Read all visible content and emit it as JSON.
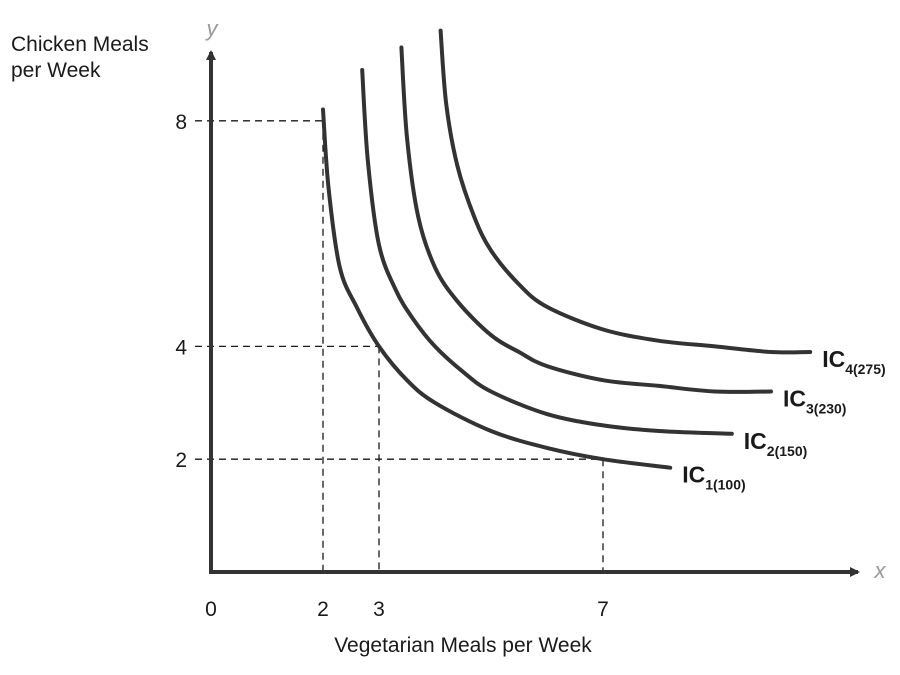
{
  "chart_data": {
    "type": "line",
    "title": "",
    "xlabel": "Vegetarian Meals per Week",
    "ylabel": "Chicken Meals per Week",
    "x_axis_letter": "x",
    "y_axis_letter": "y",
    "xlim": [
      0,
      11.3
    ],
    "ylim": [
      0,
      9.5
    ],
    "x_ticks": [
      0,
      2,
      3,
      7
    ],
    "x_tick_labels": [
      "0",
      "2",
      "3",
      "7"
    ],
    "y_ticks": [
      2,
      4,
      8
    ],
    "y_tick_labels": [
      "2",
      "4",
      "8"
    ],
    "grid": false,
    "legend": "none",
    "series": [
      {
        "name": "IC1(100)",
        "label_main": "IC",
        "label_sub": "1(100)",
        "x": [
          2.0,
          2.1,
          2.3,
          2.6,
          3.0,
          3.5,
          4.0,
          5.0,
          6.0,
          7.0,
          8.2
        ],
        "y": [
          8.2,
          6.8,
          5.4,
          4.7,
          4.0,
          3.4,
          3.0,
          2.5,
          2.2,
          2.0,
          1.85
        ]
      },
      {
        "name": "IC2(150)",
        "label_main": "IC",
        "label_sub": "2(150)",
        "x": [
          2.7,
          2.8,
          3.0,
          3.3,
          3.6,
          4.0,
          4.5,
          5.0,
          6.0,
          7.0,
          8.0,
          9.3
        ],
        "y": [
          8.9,
          7.3,
          5.8,
          5.0,
          4.5,
          4.0,
          3.55,
          3.2,
          2.8,
          2.6,
          2.5,
          2.45
        ]
      },
      {
        "name": "IC3(230)",
        "label_main": "IC",
        "label_sub": "3(230)",
        "x": [
          3.4,
          3.5,
          3.7,
          4.0,
          4.4,
          5.0,
          5.5,
          6.0,
          7.0,
          8.0,
          9.0,
          10.0
        ],
        "y": [
          9.3,
          7.7,
          6.3,
          5.4,
          4.8,
          4.2,
          3.9,
          3.65,
          3.4,
          3.3,
          3.2,
          3.2
        ]
      },
      {
        "name": "IC4(275)",
        "label_main": "IC",
        "label_sub": "4(275)",
        "x": [
          4.1,
          4.2,
          4.4,
          4.7,
          5.0,
          5.5,
          6.0,
          7.0,
          8.0,
          9.0,
          10.0,
          10.7
        ],
        "y": [
          9.6,
          8.3,
          7.2,
          6.3,
          5.7,
          5.1,
          4.7,
          4.3,
          4.1,
          4.0,
          3.9,
          3.9
        ]
      }
    ],
    "guides": [
      {
        "x": 2,
        "y": 8
      },
      {
        "x": 3,
        "y": 4
      },
      {
        "x": 7,
        "y": 2
      }
    ]
  }
}
